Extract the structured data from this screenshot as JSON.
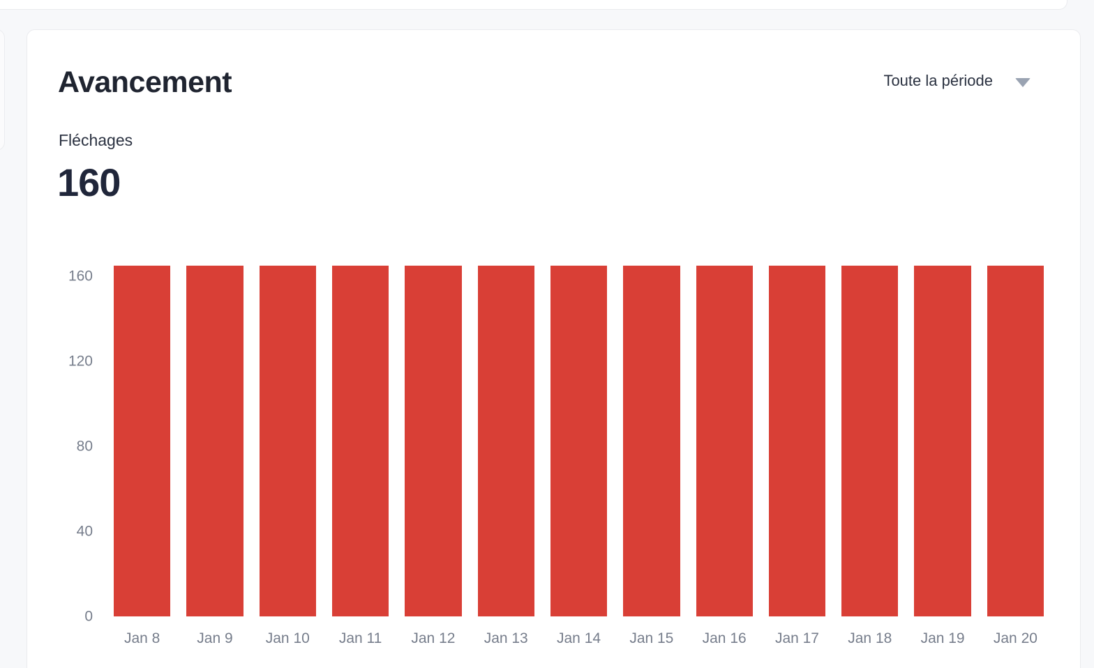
{
  "card": {
    "title": "Avancement",
    "period_selector": {
      "label": "Toute la période",
      "icon": "caret-down-icon"
    },
    "metric": {
      "label": "Fléchages",
      "value": "160"
    }
  },
  "chart_data": {
    "type": "bar",
    "title": "Avancement",
    "categories": [
      "Jan 8",
      "Jan 9",
      "Jan 10",
      "Jan 11",
      "Jan 12",
      "Jan 13",
      "Jan 14",
      "Jan 15",
      "Jan 16",
      "Jan 17",
      "Jan 18",
      "Jan 19",
      "Jan 20"
    ],
    "values": [
      165,
      165,
      165,
      165,
      165,
      165,
      165,
      165,
      165,
      165,
      165,
      165,
      165
    ],
    "xlabel": "",
    "ylabel": "",
    "ylim": [
      0,
      165
    ],
    "yticks": [
      0,
      40,
      80,
      120,
      160
    ],
    "grid": false,
    "legend": "none",
    "bar_color": "#d93f36",
    "axis_label_color": "#767d8b"
  },
  "colors": {
    "page_background": "#f7f8fa",
    "card_background": "#ffffff",
    "card_border": "#eaebee",
    "title_text": "#1f2430",
    "body_text": "#2a3140",
    "axis_text": "#767d8b",
    "bar_red": "#d93f36",
    "caret_gray": "#9aa3b2"
  }
}
